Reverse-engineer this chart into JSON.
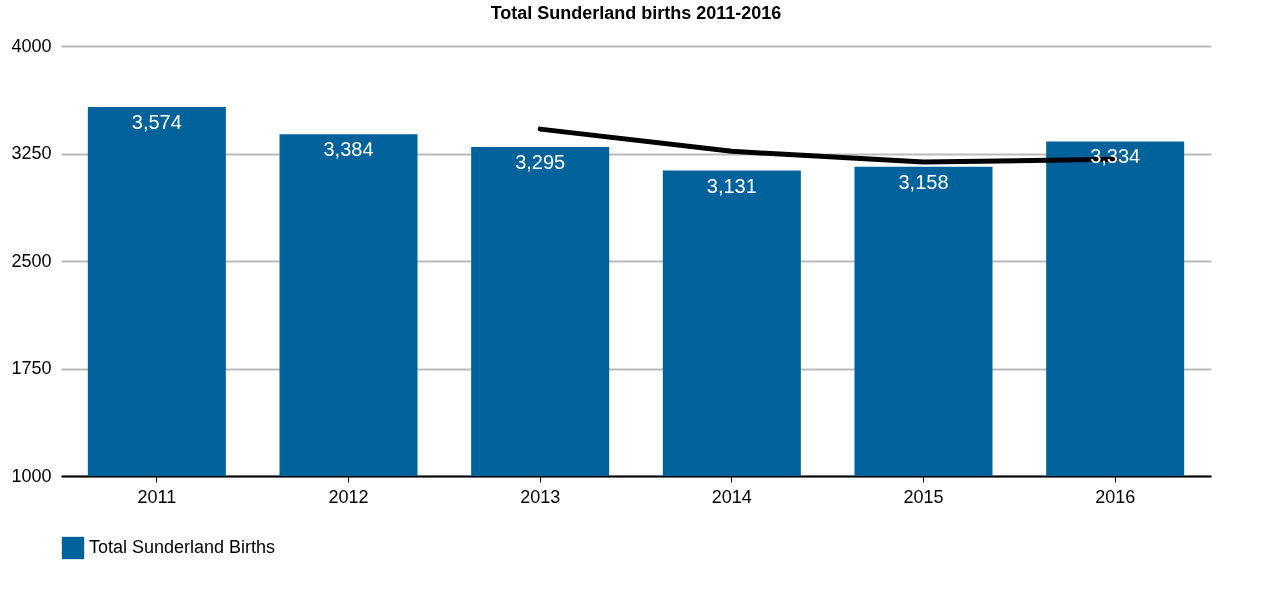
{
  "chart_data": {
    "type": "bar",
    "title": "Total Sunderland births 2011-2016",
    "categories": [
      "2011",
      "2012",
      "2013",
      "2014",
      "2015",
      "2016"
    ],
    "series": [
      {
        "name": "Total Sunderland Births",
        "color": "#00629b",
        "values": [
          3574,
          3384,
          3295,
          3131,
          3158,
          3334
        ],
        "value_labels": [
          "3,574",
          "3,384",
          "3,295",
          "3,131",
          "3,158",
          "3,334"
        ]
      },
      {
        "type": "line",
        "color": "#000000",
        "values": [
          null,
          null,
          3420,
          3265,
          3190,
          3210
        ]
      }
    ],
    "ylim": [
      1000,
      4000
    ],
    "yticks": [
      {
        "value": 1000,
        "label": "1000"
      },
      {
        "value": 1750,
        "label": "1750"
      },
      {
        "value": 2500,
        "label": "2500"
      },
      {
        "value": 3250,
        "label": "3250"
      },
      {
        "value": 4000,
        "label": "4000"
      }
    ],
    "grid": "y",
    "legend": "bottom"
  }
}
